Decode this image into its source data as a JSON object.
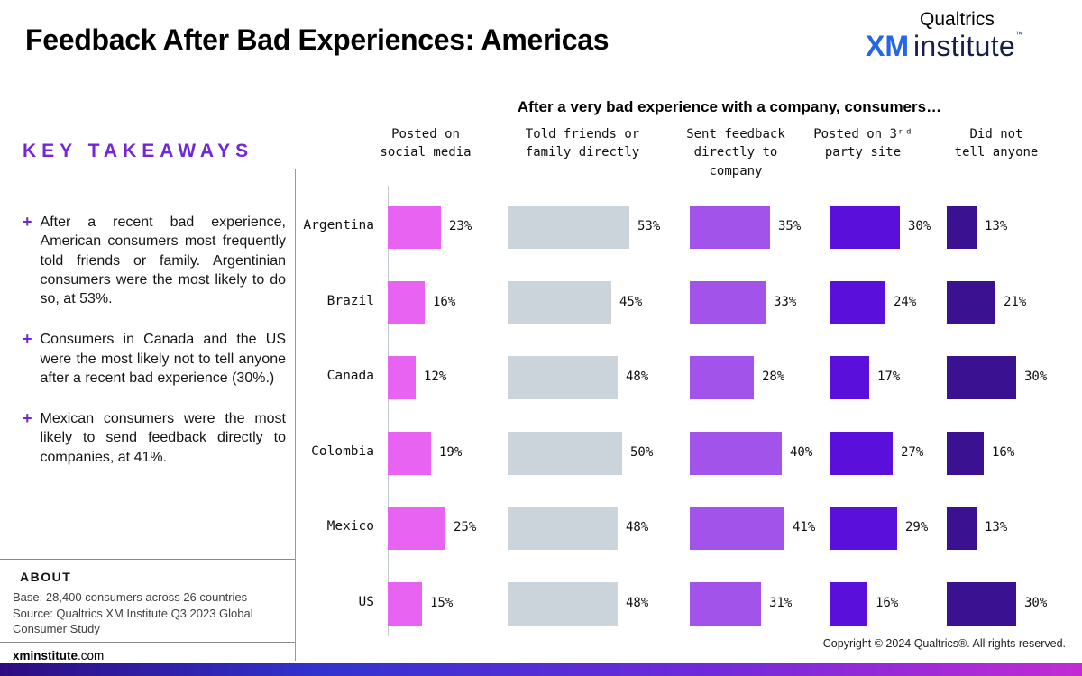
{
  "header": {
    "title": "Feedback After Bad Experiences: Americas",
    "logo": {
      "qualtrics": "Qualtrics",
      "xm": "XM",
      "institute": "institute",
      "tm": "™"
    }
  },
  "takeaways": {
    "heading": "KEY TAKEAWAYS",
    "bullet": "+",
    "items": [
      "After a recent bad experience, American consumers most frequently told friends or family. Argentinian consumers were the most likely to do so, at 53%.",
      "Consumers in Canada and the US were the most likely not to tell anyone after a recent bad experience (30%.)",
      "Mexican consumers were the most likely to send feedback directly to companies, at 41%."
    ]
  },
  "about": {
    "heading": "ABOUT",
    "lines": [
      "Base: 28,400 consumers across 26 countries",
      "Source: Qualtrics XM Institute Q3 2023 Global Consumer Study"
    ],
    "site_bold": "xminstitute",
    "site_rest": ".com"
  },
  "footer": {
    "copyright": "Copyright © 2024 Qualtrics®. All rights reserved."
  },
  "colors": {
    "accent_purple": "#7226D9",
    "xm_blue": "#2566E8",
    "institute_navy": "#15204A"
  },
  "chart_data": {
    "type": "bar",
    "orientation": "horizontal",
    "title": "After a very bad experience with a company, consumers…",
    "categories": [
      "Argentina",
      "Brazil",
      "Canada",
      "Colombia",
      "Mexico",
      "US"
    ],
    "series": [
      {
        "name": "Posted on social media",
        "header_lines": [
          "Posted on",
          "social media"
        ],
        "color": "#E863F2",
        "values": [
          23,
          16,
          12,
          19,
          25,
          15
        ]
      },
      {
        "name": "Told friends or family directly",
        "header_lines": [
          "Told friends or",
          "family directly"
        ],
        "color": "#CBD4DA",
        "values": [
          53,
          45,
          48,
          50,
          48,
          48
        ]
      },
      {
        "name": "Sent feedback directly to company",
        "header_lines": [
          "Sent feedback",
          "directly to",
          "company"
        ],
        "color": "#A253E9",
        "values": [
          35,
          33,
          28,
          40,
          41,
          31
        ]
      },
      {
        "name": "Posted on 3rd party site",
        "header_lines": [
          "Posted on 3ʳᵈ",
          "party site"
        ],
        "color": "#5B0FDB",
        "values": [
          30,
          24,
          17,
          27,
          29,
          16
        ]
      },
      {
        "name": "Did not tell anyone",
        "header_lines": [
          "Did not",
          "tell anyone"
        ],
        "color": "#3A1190",
        "values": [
          13,
          21,
          30,
          16,
          13,
          30
        ]
      }
    ],
    "value_suffix": "%",
    "xlim": [
      0,
      55
    ],
    "legend": "none",
    "grid": "off"
  }
}
